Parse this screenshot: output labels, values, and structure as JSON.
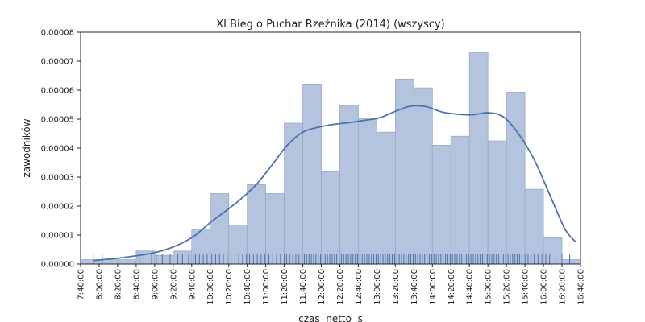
{
  "chart_data": {
    "type": "histogram",
    "title": "XI Bieg o Puchar Rzeźnika (2014) (wszyscy)",
    "xlabel": "czas  netto  s",
    "ylabel": "zawodników",
    "xlim": [
      27600,
      60000
    ],
    "ylim": [
      0,
      8e-05
    ],
    "ytick_labels": [
      "0.00000",
      "0.00001",
      "0.00002",
      "0.00003",
      "0.00004",
      "0.00005",
      "0.00006",
      "0.00007",
      "0.00008"
    ],
    "yticks": [
      0,
      1e-05,
      2e-05,
      3e-05,
      4e-05,
      5e-05,
      6e-05,
      7e-05,
      8e-05
    ],
    "xticks": [
      27600,
      28800,
      30000,
      31200,
      32400,
      33600,
      34800,
      36000,
      37200,
      38400,
      39600,
      40800,
      42000,
      43200,
      44400,
      45600,
      46800,
      48000,
      49200,
      50400,
      51600,
      52800,
      54000,
      55200,
      56400,
      57600,
      58800,
      60000
    ],
    "xtick_labels": [
      "7:40:00",
      "8:00:00",
      "8:20:00",
      "8:40:00",
      "9:00:00",
      "9:20:00",
      "9:40:00",
      "10:00:00",
      "10:20:00",
      "10:40:00",
      "11:00:00",
      "11:20:00",
      "11:40:00",
      "12:00:00",
      "12:20:00",
      "12:40:00",
      "13:00:00",
      "13:20:00",
      "13:40:00",
      "14:00:00",
      "14:20:00",
      "14:40:00",
      "15:00:00",
      "15:20:00",
      "15:40:00",
      "16:00:00",
      "16:20:00",
      "16:40:00"
    ],
    "bins": [
      {
        "x0": 27600,
        "x1": 28800,
        "value": 1.5e-06
      },
      {
        "x0": 28800,
        "x1": 30000,
        "value": 1.5e-06
      },
      {
        "x0": 30000,
        "x1": 31200,
        "value": 1.5e-06
      },
      {
        "x0": 31200,
        "x1": 32400,
        "value": 4.5e-06
      },
      {
        "x0": 32400,
        "x1": 33600,
        "value": 3e-06
      },
      {
        "x0": 33600,
        "x1": 34800,
        "value": 4.5e-06
      },
      {
        "x0": 34800,
        "x1": 36000,
        "value": 1.2e-05
      },
      {
        "x0": 36000,
        "x1": 37200,
        "value": 2.43e-05
      },
      {
        "x0": 37200,
        "x1": 38400,
        "value": 1.35e-05
      },
      {
        "x0": 38400,
        "x1": 39600,
        "value": 2.74e-05
      },
      {
        "x0": 39600,
        "x1": 40800,
        "value": 2.43e-05
      },
      {
        "x0": 40800,
        "x1": 42000,
        "value": 4.86e-05
      },
      {
        "x0": 42000,
        "x1": 43200,
        "value": 6.21e-05
      },
      {
        "x0": 43200,
        "x1": 44400,
        "value": 3.19e-05
      },
      {
        "x0": 44400,
        "x1": 45600,
        "value": 5.47e-05
      },
      {
        "x0": 45600,
        "x1": 46800,
        "value": 5.01e-05
      },
      {
        "x0": 46800,
        "x1": 48000,
        "value": 4.55e-05
      },
      {
        "x0": 48000,
        "x1": 49200,
        "value": 6.38e-05
      },
      {
        "x0": 49200,
        "x1": 50400,
        "value": 6.08e-05
      },
      {
        "x0": 50400,
        "x1": 51600,
        "value": 4.1e-05
      },
      {
        "x0": 51600,
        "x1": 52800,
        "value": 4.41e-05
      },
      {
        "x0": 52800,
        "x1": 54000,
        "value": 7.29e-05
      },
      {
        "x0": 54000,
        "x1": 55200,
        "value": 4.25e-05
      },
      {
        "x0": 55200,
        "x1": 56400,
        "value": 5.93e-05
      },
      {
        "x0": 56400,
        "x1": 57600,
        "value": 2.58e-05
      },
      {
        "x0": 57600,
        "x1": 58800,
        "value": 9.1e-06
      },
      {
        "x0": 58800,
        "x1": 60000,
        "value": 1.5e-06
      }
    ],
    "kde": {
      "x": [
        28400,
        29000,
        30000,
        31000,
        32000,
        33000,
        34000,
        35000,
        36000,
        37000,
        38000,
        39000,
        40000,
        41000,
        42000,
        43000,
        44000,
        45000,
        46000,
        47000,
        48000,
        49000,
        50000,
        51000,
        52000,
        53000,
        54000,
        55000,
        56000,
        57000,
        58000,
        59000,
        59700
      ],
      "y": [
        1.2e-06,
        1.5e-06,
        2e-06,
        2.7e-06,
        3.5e-06,
        4.8e-06,
        6.8e-06,
        9.8e-06,
        1.43e-05,
        1.83e-05,
        2.25e-05,
        2.75e-05,
        3.41e-05,
        4.1e-05,
        4.55e-05,
        4.72e-05,
        4.82e-05,
        4.88e-05,
        4.96e-05,
        5.05e-05,
        5.27e-05,
        5.45e-05,
        5.43e-05,
        5.25e-05,
        5.17e-05,
        5.15e-05,
        5.22e-05,
        5.08e-05,
        4.48e-05,
        3.6e-05,
        2.4e-05,
        1.2e-05,
        7.6e-06
      ]
    },
    "rug": [
      28450,
      29000,
      30600,
      31400,
      31700,
      32200,
      32500,
      32900,
      33400,
      33900,
      34200,
      34600,
      34900,
      35050,
      35300,
      35550,
      35800,
      36100,
      36350,
      36600,
      36850,
      37100,
      37350,
      37600,
      37850,
      38100,
      38350,
      38550,
      38800,
      39050,
      39300,
      39550,
      39800,
      40050,
      40300,
      40550,
      40800,
      40950,
      41150,
      41350,
      41550,
      41750,
      41950,
      42100,
      42250,
      42400,
      42550,
      42700,
      42850,
      43000,
      43150,
      43300,
      43450,
      43600,
      43750,
      43900,
      44050,
      44200,
      44350,
      44500,
      44650,
      44800,
      44950,
      45100,
      45250,
      45400,
      45550,
      45700,
      45850,
      46000,
      46150,
      46300,
      46450,
      46600,
      46750,
      46900,
      47050,
      47200,
      47350,
      47500,
      47650,
      47800,
      47950,
      48100,
      48250,
      48400,
      48550,
      48700,
      48850,
      49000,
      49150,
      49300,
      49450,
      49600,
      49750,
      49900,
      50050,
      50200,
      50350,
      50500,
      50650,
      50800,
      50950,
      51100,
      51250,
      51400,
      51550,
      51700,
      51850,
      52000,
      52150,
      52300,
      52450,
      52600,
      52750,
      52900,
      53050,
      53200,
      53350,
      53500,
      53650,
      53800,
      53950,
      54100,
      54250,
      54400,
      54550,
      54700,
      54850,
      55000,
      55150,
      55300,
      55450,
      55600,
      55750,
      55900,
      56050,
      56200,
      56400,
      56600,
      56800,
      57000,
      57250,
      57500,
      57750,
      58000,
      58400,
      58800,
      59300
    ],
    "colors": {
      "bar_fill": "#b4c4de",
      "bar_edge": "#9aa9c4",
      "kde": "#4c72b0",
      "rug": "#4c72b0",
      "axis": "#222222"
    }
  }
}
